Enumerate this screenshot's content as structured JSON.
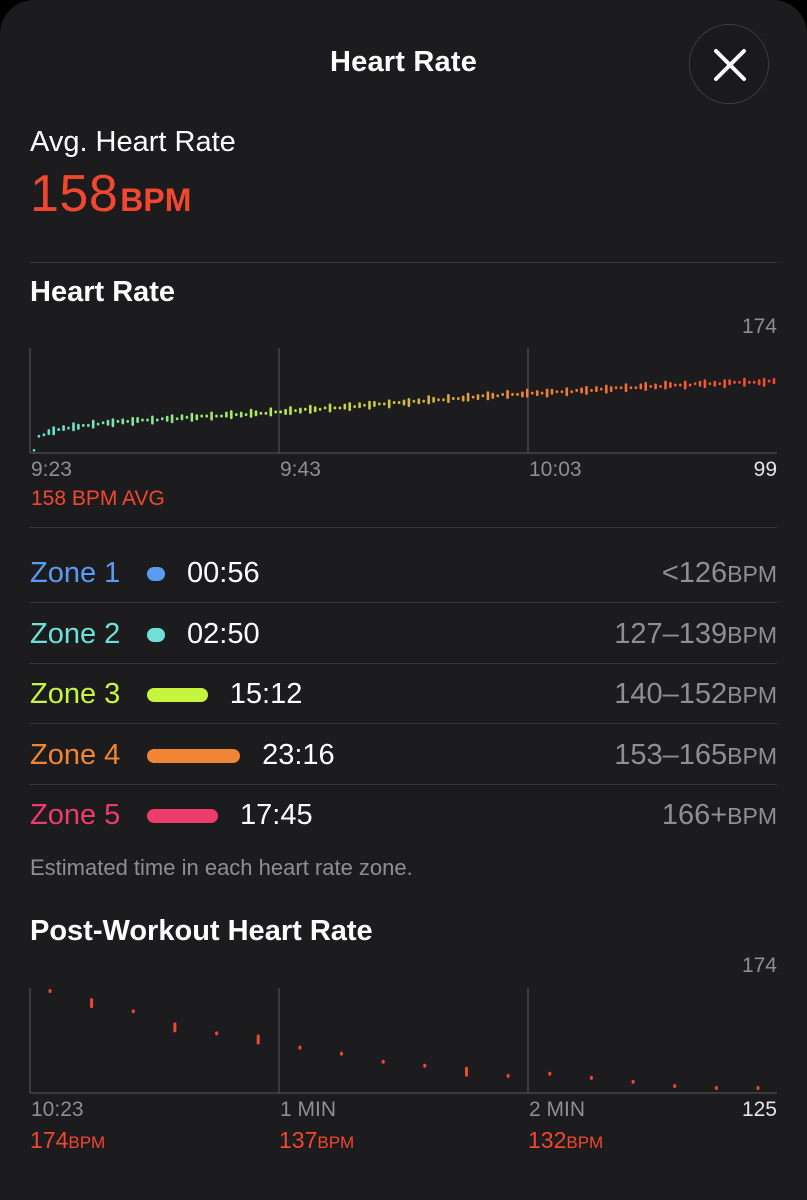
{
  "header": {
    "title": "Heart Rate",
    "close_icon": "close-icon"
  },
  "summary": {
    "label": "Avg. Heart Rate",
    "value": "158",
    "unit": "BPM"
  },
  "hr_chart": {
    "section_title": "Heart Rate",
    "y_max_label": "174",
    "y_min_label": "99",
    "x_labels": [
      "9:23",
      "9:43",
      "10:03"
    ],
    "avg_label": "158 BPM AVG"
  },
  "zones": [
    {
      "name": "Zone 1",
      "time": "00:56",
      "range": "<126",
      "unit": "BPM",
      "color": "#5b9cf2",
      "minutes": 0.93
    },
    {
      "name": "Zone 2",
      "time": "02:50",
      "range": "127–139",
      "unit": "BPM",
      "color": "#6ee0d8",
      "minutes": 2.83
    },
    {
      "name": "Zone 3",
      "time": "15:12",
      "range": "140–152",
      "unit": "BPM",
      "color": "#c7f53f",
      "minutes": 15.2
    },
    {
      "name": "Zone 4",
      "time": "23:16",
      "range": "153–165",
      "unit": "BPM",
      "color": "#ef8535",
      "minutes": 23.27
    },
    {
      "name": "Zone 5",
      "time": "17:45",
      "range": "166+",
      "unit": "BPM",
      "color": "#ed3b6b",
      "minutes": 17.75
    }
  ],
  "footnote": "Estimated time in each heart rate zone.",
  "post": {
    "section_title": "Post-Workout Heart Rate",
    "y_max_label": "174",
    "y_min_label": "125",
    "x_labels": [
      "10:23",
      "1 MIN",
      "2 MIN"
    ],
    "bpm_values": [
      {
        "value": "174",
        "unit": "BPM"
      },
      {
        "value": "137",
        "unit": "BPM"
      },
      {
        "value": "132",
        "unit": "BPM"
      }
    ]
  },
  "chart_data": [
    {
      "type": "scatter",
      "title": "Heart Rate",
      "x_labels": [
        "9:23",
        "9:43",
        "10:03"
      ],
      "ylim": [
        99,
        174
      ],
      "avg": 158,
      "color_scale": [
        "#5ee1d6",
        "#b8ee4a",
        "#ef8535",
        "#f2472f"
      ],
      "values": [
        100,
        110,
        111,
        113,
        114,
        115,
        116,
        116,
        117,
        117,
        118,
        118,
        119,
        119,
        120,
        120,
        120,
        121,
        121,
        121,
        121,
        122,
        122,
        122,
        122,
        122,
        123,
        123,
        123,
        123,
        124,
        124,
        124,
        124,
        125,
        125,
        125,
        125,
        125,
        126,
        126,
        126,
        126,
        126,
        127,
        127,
        127,
        127,
        128,
        128,
        128,
        128,
        129,
        129,
        129,
        130,
        130,
        130,
        130,
        131,
        131,
        131,
        131,
        132,
        132,
        132,
        133,
        133,
        133,
        134,
        134,
        134,
        134,
        135,
        135,
        135,
        135,
        136,
        136,
        136,
        137,
        137,
        137,
        137,
        138,
        138,
        138,
        138,
        139,
        139,
        139,
        140,
        140,
        140,
        140,
        141,
        141,
        141,
        141,
        141,
        142,
        142,
        142,
        142,
        142,
        143,
        143,
        143,
        143,
        143,
        144,
        144,
        144,
        144,
        145,
        145,
        145,
        145,
        146,
        146,
        146,
        146,
        146,
        147,
        147,
        147,
        147,
        147,
        148,
        148,
        148,
        148,
        148,
        148,
        149,
        149,
        149,
        149,
        149,
        149,
        149,
        150,
        150,
        150,
        150,
        150,
        150,
        150,
        150,
        151,
        151
      ]
    },
    {
      "type": "scatter",
      "title": "Post-Workout Heart Rate",
      "x_labels": [
        "10:23",
        "1 MIN",
        "2 MIN"
      ],
      "ylim": [
        125,
        174
      ],
      "color": "#f2472f",
      "values": [
        174,
        168,
        164,
        156,
        153,
        150,
        146,
        143,
        139,
        137,
        134,
        132,
        133,
        131,
        129,
        127,
        126,
        126
      ]
    }
  ]
}
